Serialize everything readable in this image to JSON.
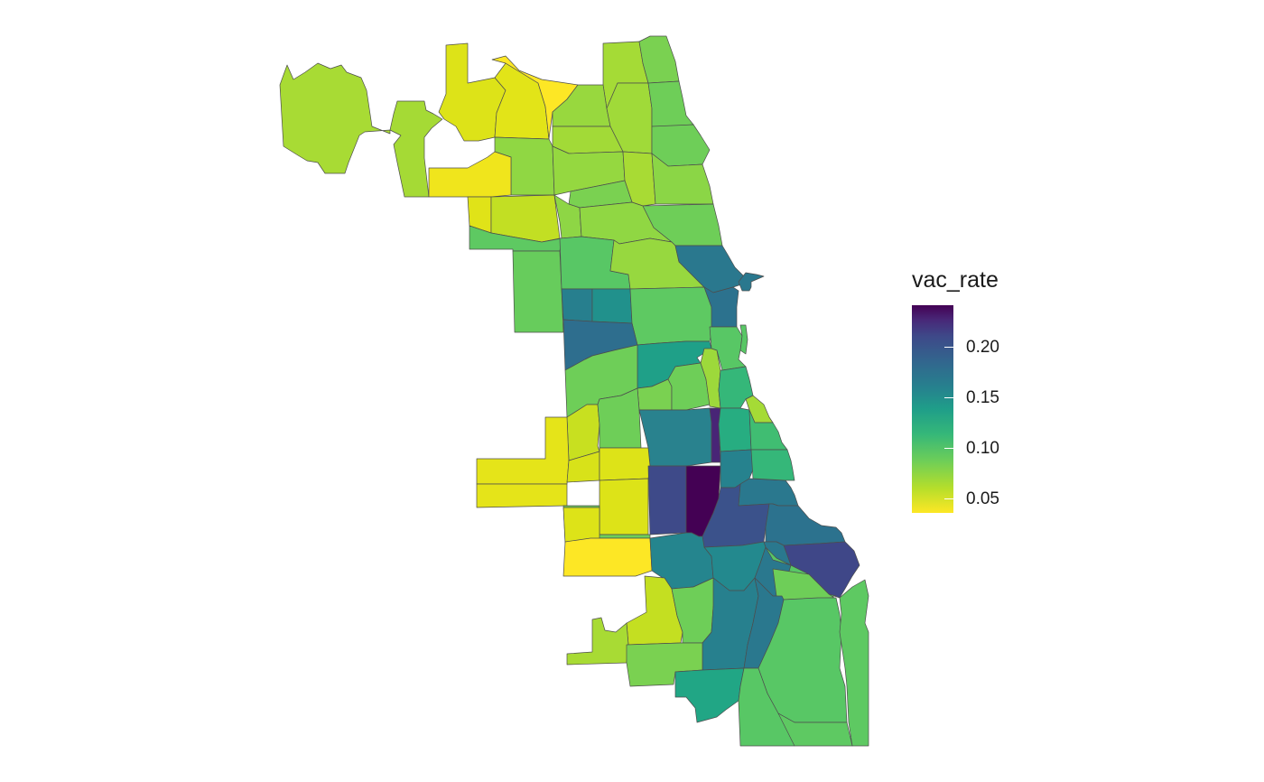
{
  "legend": {
    "title": "vac_rate",
    "ticks": [
      "0.05",
      "0.10",
      "0.15",
      "0.20"
    ],
    "color_scale": [
      "#fde725",
      "#b5de2b",
      "#6ece58",
      "#35b779",
      "#1f9e89",
      "#26828e",
      "#31688e",
      "#3e4989",
      "#482878",
      "#440154"
    ]
  },
  "colors": {
    "lowest": "#fde725",
    "highest": "#440154",
    "border": "#4d4d4d",
    "background": "#ffffff"
  }
}
